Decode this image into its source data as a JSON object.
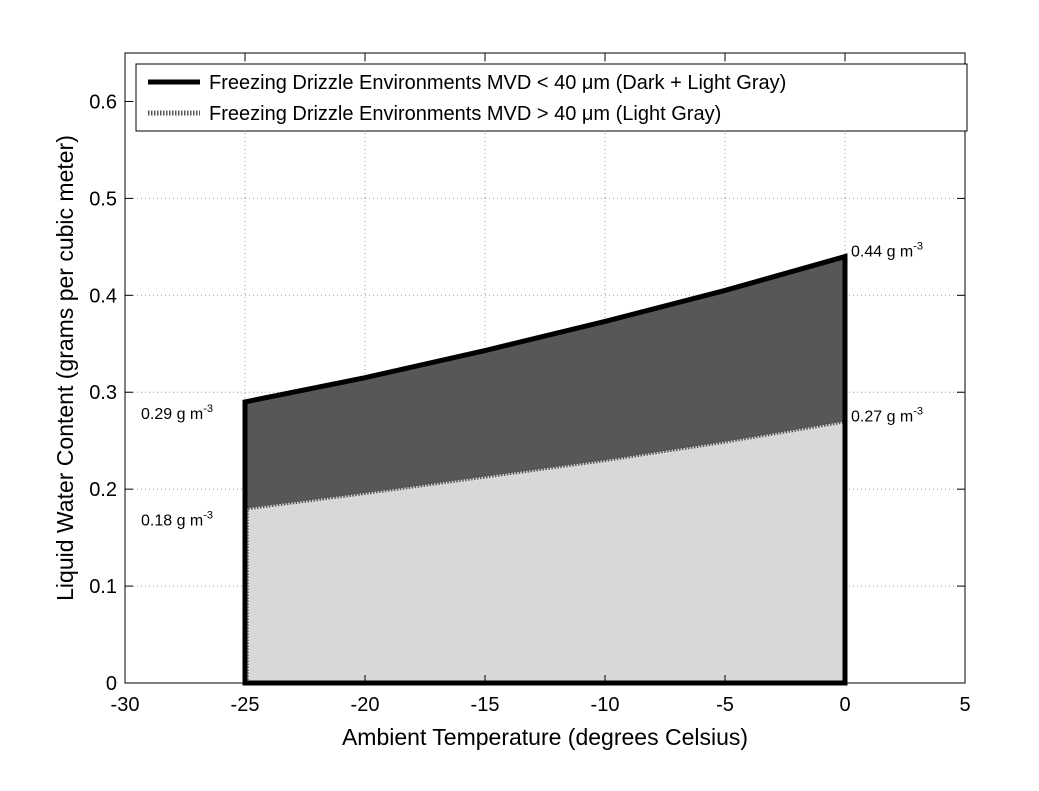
{
  "chart_data": {
    "type": "area",
    "xlabel": "Ambient Temperature (degrees Celsius)",
    "ylabel": "Liquid Water Content (grams per cubic meter)",
    "xlim": [
      -30,
      5
    ],
    "ylim": [
      0,
      0.65
    ],
    "xticks": [
      -30,
      -25,
      -20,
      -15,
      -10,
      -5,
      0,
      5
    ],
    "yticks": [
      0,
      0.1,
      0.2,
      0.3,
      0.4,
      0.5,
      0.6
    ],
    "xtick_labels": [
      "-30",
      "-25",
      "-20",
      "-15",
      "-10",
      "-5",
      "0",
      "5"
    ],
    "ytick_labels": [
      "0",
      "0.1",
      "0.2",
      "0.3",
      "0.4",
      "0.5",
      "0.6"
    ],
    "grid": true,
    "legend_position": "top",
    "series": [
      {
        "name": "Freezing Drizzle Environments MVD < 40 μm (Dark + Light Gray)",
        "x": [
          -25,
          -20,
          -15,
          -10,
          -5,
          0
        ],
        "y": [
          0.29,
          0.315,
          0.343,
          0.373,
          0.405,
          0.44
        ],
        "fill_color": "#575757",
        "line_color": "#000000",
        "line_style": "solid"
      },
      {
        "name": "Freezing Drizzle Environments MVD > 40 μm (Light Gray)",
        "x": [
          -25,
          -20,
          -15,
          -10,
          -5,
          0
        ],
        "y": [
          0.18,
          0.196,
          0.213,
          0.23,
          0.249,
          0.27
        ],
        "fill_color": "#d8d8d8",
        "line_color": "#555555",
        "line_style": "dotted"
      }
    ],
    "annotations": [
      {
        "x": 0,
        "y": 0.44,
        "value": "0.44 g m",
        "sup": "-3",
        "side": "right"
      },
      {
        "x": -25,
        "y": 0.29,
        "value": "0.29 g m",
        "sup": "-3",
        "side": "left"
      },
      {
        "x": 0,
        "y": 0.27,
        "value": "0.27 g m",
        "sup": "-3",
        "side": "right"
      },
      {
        "x": -25,
        "y": 0.18,
        "value": "0.18 g m",
        "sup": "-3",
        "side": "left"
      }
    ]
  }
}
